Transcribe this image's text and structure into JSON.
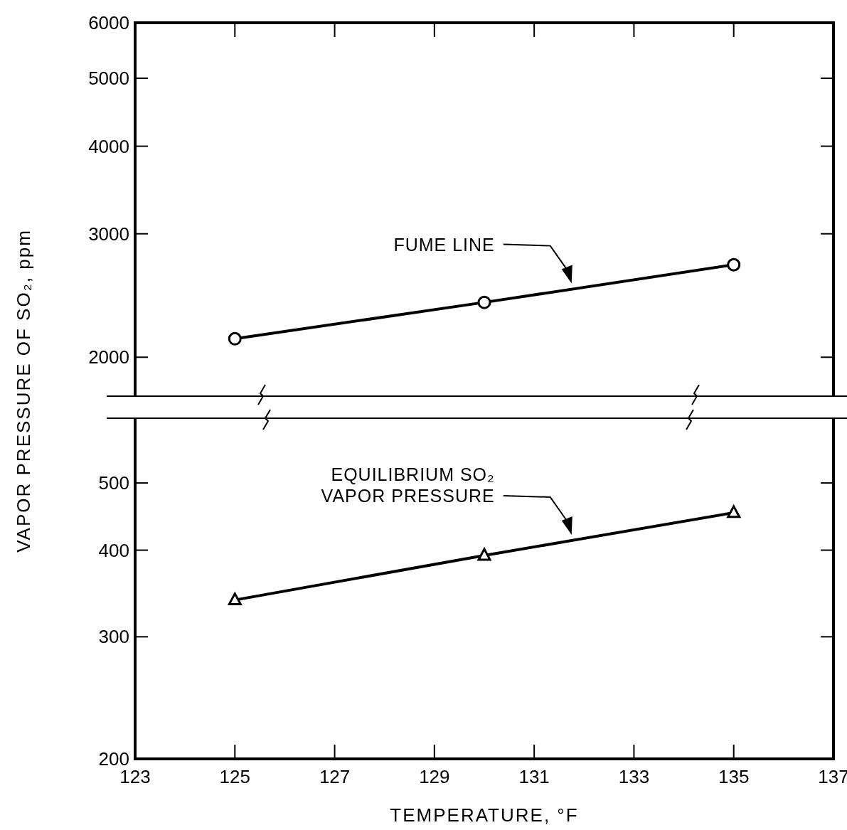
{
  "chart_data": [
    {
      "type": "line",
      "ylabel": "VAPOR PRESSURE OF SO₂, ppm",
      "log": true,
      "marker": "circle",
      "line_style": "solid",
      "tick_labels": "y",
      "xlim": [
        123,
        137
      ],
      "xticks": [
        123,
        125,
        127,
        129,
        131,
        133,
        135,
        137
      ],
      "ylim": [
        1760,
        6000
      ],
      "yticks": [
        2000,
        3000,
        4000,
        5000,
        6000
      ],
      "x": [
        125,
        130,
        135
      ],
      "series": [
        {
          "name": "FUME LINE",
          "color": "#000000",
          "values": [
            2125,
            2395,
            2710
          ]
        }
      ]
    },
    {
      "type": "line",
      "xlabel": "TEMPERATURE, °F",
      "log": true,
      "marker": "triangle",
      "line_style": "solid",
      "xlim": [
        123,
        137
      ],
      "xticks": [
        123,
        125,
        127,
        129,
        131,
        133,
        135,
        137
      ],
      "ylim": [
        200,
        620
      ],
      "yticks": [
        200,
        300,
        400,
        500
      ],
      "x": [
        125,
        130,
        135
      ],
      "series": [
        {
          "name": "EQUILIBRIUM SO₂\nVAPOR PRESSURE",
          "color": "#000000",
          "values": [
            339,
            393,
            453
          ]
        }
      ]
    }
  ]
}
